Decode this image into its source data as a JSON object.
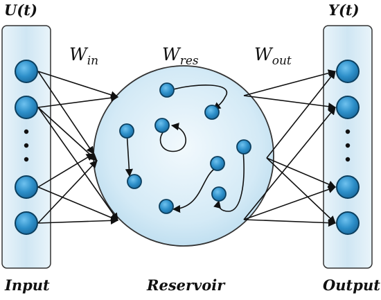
{
  "labels": {
    "u_t": "U(t)",
    "y_t": "Y(t)",
    "w_in": {
      "main": "W",
      "sub": "in"
    },
    "w_res": {
      "main": "W",
      "sub": "res"
    },
    "w_out": {
      "main": "W",
      "sub": "out"
    },
    "input": "Input",
    "reservoir": "Reservoir",
    "output": "Output"
  },
  "colors": {
    "node_fill": "#2a8fc8",
    "node_stroke": "#0b3f5f",
    "panel_fill": "#d2e7f3",
    "reservoir_fill": "#d6ebf6",
    "edge": "#111111"
  }
}
